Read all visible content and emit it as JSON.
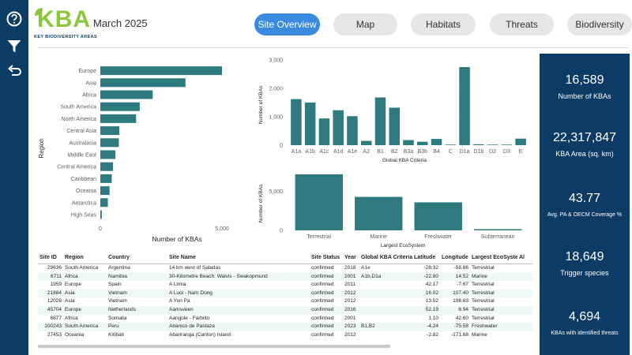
{
  "header": {
    "logo_text": "KBA",
    "logo_subtitle": "KEY BIODIVERSITY AREAS",
    "date": "March 2025",
    "tabs": [
      {
        "label": "Site Overview",
        "active": true
      },
      {
        "label": "Map",
        "active": false
      },
      {
        "label": "Habitats",
        "active": false
      },
      {
        "label": "Threats",
        "active": false
      },
      {
        "label": "Biodiversity",
        "active": false
      }
    ]
  },
  "rail": {
    "icons": [
      "help-icon",
      "filter-icon",
      "undo-icon"
    ]
  },
  "colors": {
    "bar": "#2e7a7e",
    "panel": "#0c3c66",
    "tab_active": "#3a8be0",
    "logo": "#8cc63f"
  },
  "region_chart": {
    "xlabel": "Number of KBAs",
    "ylabel": "Region",
    "ticks": [
      "0",
      "5,000"
    ]
  },
  "criteria_chart": {
    "xlabel": "Global KBA Criteria",
    "ylabel": "Number of KBAs",
    "ticks": [
      "0",
      "1,000",
      "2,000",
      "3,000"
    ]
  },
  "ecosystem_chart": {
    "xlabel": "Largest EcoSystem",
    "ylabel": "Number of KBAs",
    "ticks": [
      "0",
      "5,000"
    ]
  },
  "chart_data": [
    {
      "type": "bar",
      "orientation": "horizontal",
      "xlabel": "Number of KBAs",
      "ylabel": "Region",
      "xlim": [
        0,
        5000
      ],
      "categories": [
        "Europe",
        "Asia",
        "Africa",
        "South America",
        "North America",
        "Central Asia",
        "Australasia",
        "Middle East",
        "Central America",
        "Caribbean",
        "Oceania",
        "Antarctica",
        "High Seas"
      ],
      "values": [
        5000,
        3500,
        2150,
        1620,
        1470,
        780,
        760,
        620,
        520,
        470,
        380,
        310,
        60
      ]
    },
    {
      "type": "bar",
      "xlabel": "Global KBA Criteria",
      "ylabel": "Number of KBAs",
      "ylim": [
        0,
        3000
      ],
      "categories": [
        "A1a",
        "A1b",
        "A1c",
        "A1d",
        "A1e",
        "A2",
        "B1",
        "B2",
        "B3a",
        "B3b",
        "B4",
        "C",
        "D1a",
        "D1b",
        "D2",
        "D3",
        "E"
      ],
      "values": [
        1620,
        1500,
        940,
        1230,
        1020,
        150,
        1680,
        1320,
        180,
        120,
        220,
        20,
        2750,
        30,
        20,
        20,
        230
      ]
    },
    {
      "type": "bar",
      "xlabel": "Largest EcoSystem",
      "ylabel": "Number of KBAs",
      "ylim": [
        0,
        7500
      ],
      "categories": [
        "Terrestrial",
        "Marine",
        "Freshwater",
        "Subterranean"
      ],
      "values": [
        7200,
        4300,
        3600,
        150
      ]
    }
  ],
  "table": {
    "columns": [
      "Site ID",
      "Region",
      "Country",
      "Site Name",
      "Site Status",
      "Year",
      "Global KBA Criteria",
      "Latitude",
      "Longitude",
      "Largest EcoSystem",
      "Al"
    ],
    "rows": [
      [
        "29636",
        "South America",
        "Argentina",
        "14 km west of Saladas",
        "confirmed",
        "2018",
        "A1e",
        "-28.32",
        "-58.86",
        "Terrestrial"
      ],
      [
        "6711",
        "Africa",
        "Namibia",
        "30-Kilometre Beach: Walvis - Swakopmund",
        "confirmed",
        "2001",
        "A1b,D1a",
        "-22.80",
        "14.52",
        "Marine"
      ],
      [
        "1959",
        "Europe",
        "Spain",
        "A Limia",
        "confirmed",
        "2011",
        "",
        "42.17",
        "-7.67",
        "Terrestrial"
      ],
      [
        "21884",
        "Asia",
        "Vietnam",
        "A Luoi - Nam Dong",
        "confirmed",
        "2012",
        "",
        "16.02",
        "107.40",
        "Terrestrial"
      ],
      [
        "12028",
        "Asia",
        "Vietnam",
        "A Yun Pa",
        "confirmed",
        "2012",
        "",
        "13.52",
        "108.63",
        "Terrestrial"
      ],
      [
        "45704",
        "Europe",
        "Netherlands",
        "Aamsveen",
        "confirmed",
        "2016",
        "",
        "52.19",
        "6.94",
        "Terrestrial"
      ],
      [
        "6877",
        "Africa",
        "Somalia",
        "Aangole - Farbiito",
        "confirmed",
        "2001",
        "",
        "1.10",
        "42.60",
        "Terrestrial"
      ],
      [
        "100243",
        "South America",
        "Peru",
        "Abanico de Pastaza",
        "confirmed",
        "2023",
        "B1,B2",
        "-4.24",
        "-75.58",
        "Freshwater"
      ],
      [
        "27453",
        "Oceania",
        "Kiribati",
        "Abariranga (Canton) Island",
        "confirmed",
        "2012",
        "",
        "-2.82",
        "-171.68",
        "Marine"
      ]
    ]
  },
  "kpis": [
    {
      "value": "16,589",
      "label": "Number of KBAs"
    },
    {
      "value": "22,317,847",
      "label": "KBA Area (sq. km)"
    },
    {
      "value": "43.77",
      "label": "Avg. PA & OECM Coverage %"
    },
    {
      "value": "18,649",
      "label": "Trigger species"
    },
    {
      "value": "4,694",
      "label": "KBAs with identified threats"
    }
  ]
}
